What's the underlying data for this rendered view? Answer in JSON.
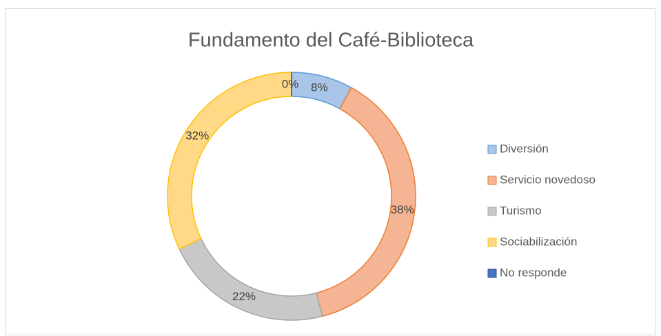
{
  "chart_data": {
    "type": "donut",
    "title": "Fundamento del Café-Biblioteca",
    "categories": [
      "Diversión",
      "Servicio novedoso",
      "Turismo",
      "Sociabilización",
      "No responde"
    ],
    "values": [
      8,
      38,
      22,
      32,
      0
    ],
    "value_labels": [
      "8%",
      "38%",
      "22%",
      "32%",
      "0%"
    ],
    "colors": [
      "#a9c5e8",
      "#f5b494",
      "#c8c8c8",
      "#ffd986",
      "#4472c4"
    ],
    "edge_colors": [
      "#5b9bd5",
      "#ed7d31",
      "#a5a5a5",
      "#ffc000",
      "#2f528f"
    ],
    "legend": "right"
  }
}
